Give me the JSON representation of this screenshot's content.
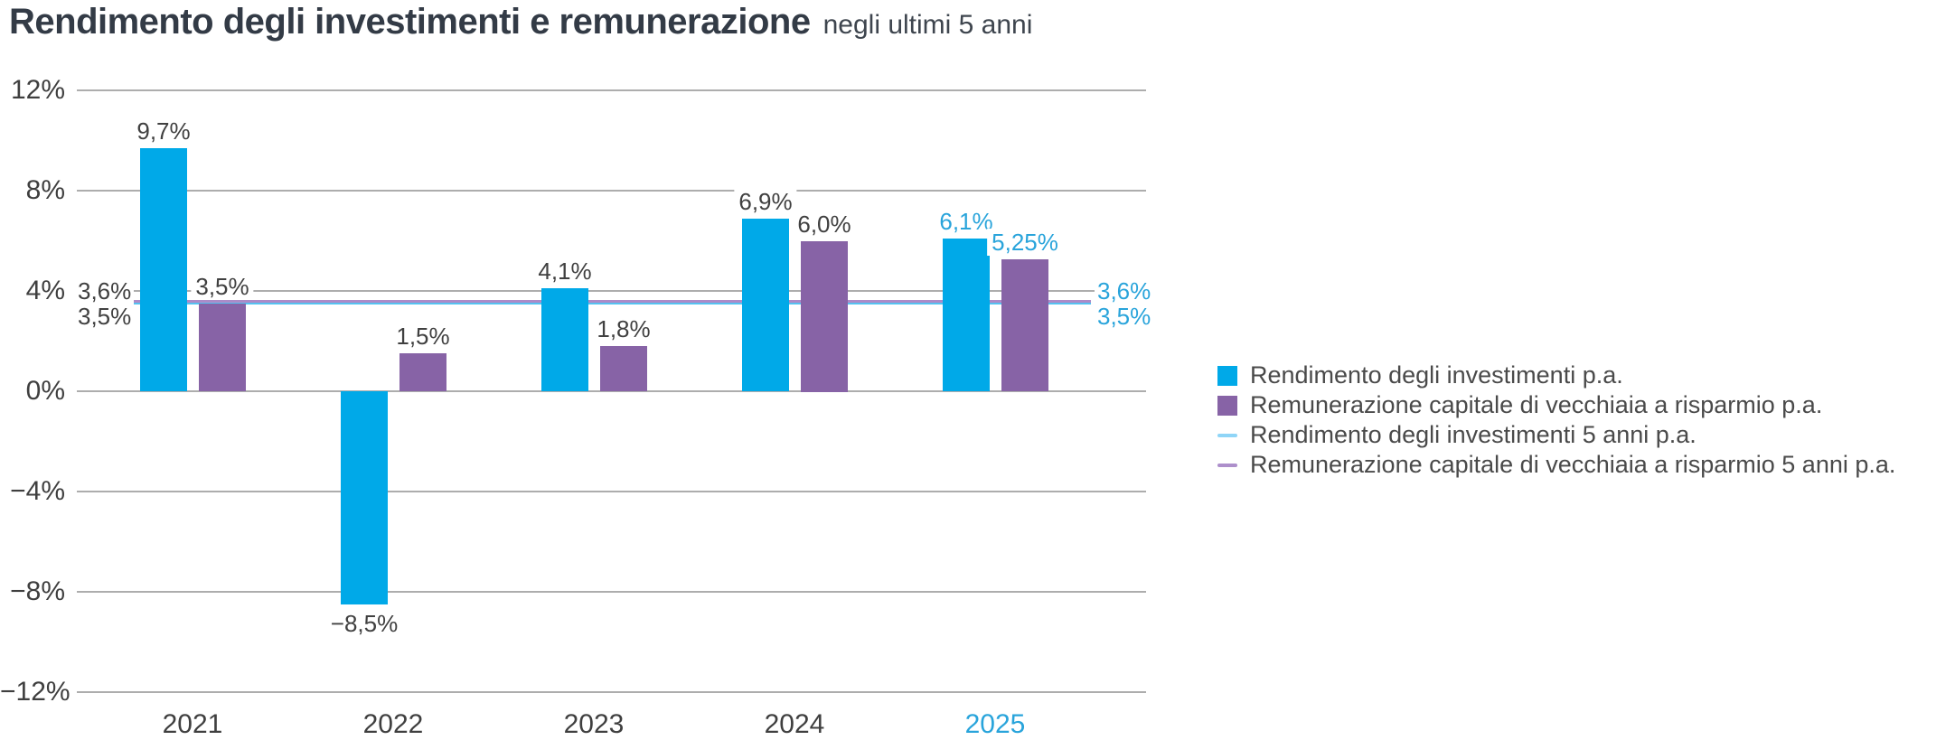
{
  "title": {
    "main": "Rendimento degli investimenti e remunerazione",
    "suffix": "negli ultimi 5 anni"
  },
  "colors": {
    "bar_blue": "#00A9E8",
    "bar_purple": "#8763A6",
    "refline_blue": "#55C2F0",
    "refline_purple": "#AC8BC8",
    "legend_dash_blue": "#8FD5F7",
    "legend_dash_purple": "#AD8FCB",
    "grid": "#ADADAD",
    "value_text": "#404040",
    "axis_text": "#3F3F3F",
    "highlight": "#29A4DB",
    "legend_text": "#4A4A4A"
  },
  "chart_data": {
    "type": "bar",
    "categories": [
      "2021",
      "2022",
      "2023",
      "2024",
      "2025"
    ],
    "highlight_index": 4,
    "series": [
      {
        "name": "Rendimento degli investimenti p.a.",
        "values": [
          9.7,
          -8.5,
          4.1,
          6.9,
          6.1
        ],
        "labels": [
          "9,7%",
          "−8,5%",
          "4,1%",
          "6,9%",
          "6,1%"
        ],
        "color": "#00A9E8"
      },
      {
        "name": "Remunerazione capitale di vecchiaia a risparmio p.a.",
        "values": [
          3.5,
          1.5,
          1.8,
          6.0,
          5.25
        ],
        "labels": [
          "3,5%",
          "1,5%",
          "1,8%",
          "6,0%",
          "5,25%"
        ],
        "color": "#8763A6"
      }
    ],
    "reference_lines": [
      {
        "name": "Rendimento degli investimenti 5 anni p.a.",
        "value": 3.5,
        "label": "3,5%",
        "color": "#55C2F0"
      },
      {
        "name": "Remunerazione capitale di vecchiaia a risparmio 5 anni p.a.",
        "value": 3.6,
        "label": "3,6%",
        "color": "#AC8BC8"
      }
    ],
    "y_axis": {
      "ticks": [
        "12%",
        "8%",
        "4%",
        "0%",
        "−4%",
        "−8%",
        "−12%"
      ],
      "tick_values": [
        12,
        8,
        4,
        0,
        -4,
        -8,
        -12
      ],
      "ylim": [
        -12,
        12
      ],
      "grid": true
    },
    "xlabel": "",
    "ylabel": "",
    "legend": [
      {
        "label": "Rendimento degli investimenti p.a.",
        "marker": "square",
        "color": "#00A9E8"
      },
      {
        "label": "Remunerazione capitale di vecchiaia a risparmio p.a.",
        "marker": "square",
        "color": "#8763A6"
      },
      {
        "label": "Rendimento degli investimenti 5 anni p.a.",
        "marker": "line",
        "color": "#8FD5F7"
      },
      {
        "label": "Remunerazione capitale di vecchiaia a risparmio 5 anni p.a.",
        "marker": "line",
        "color": "#AD8FCB"
      }
    ]
  }
}
